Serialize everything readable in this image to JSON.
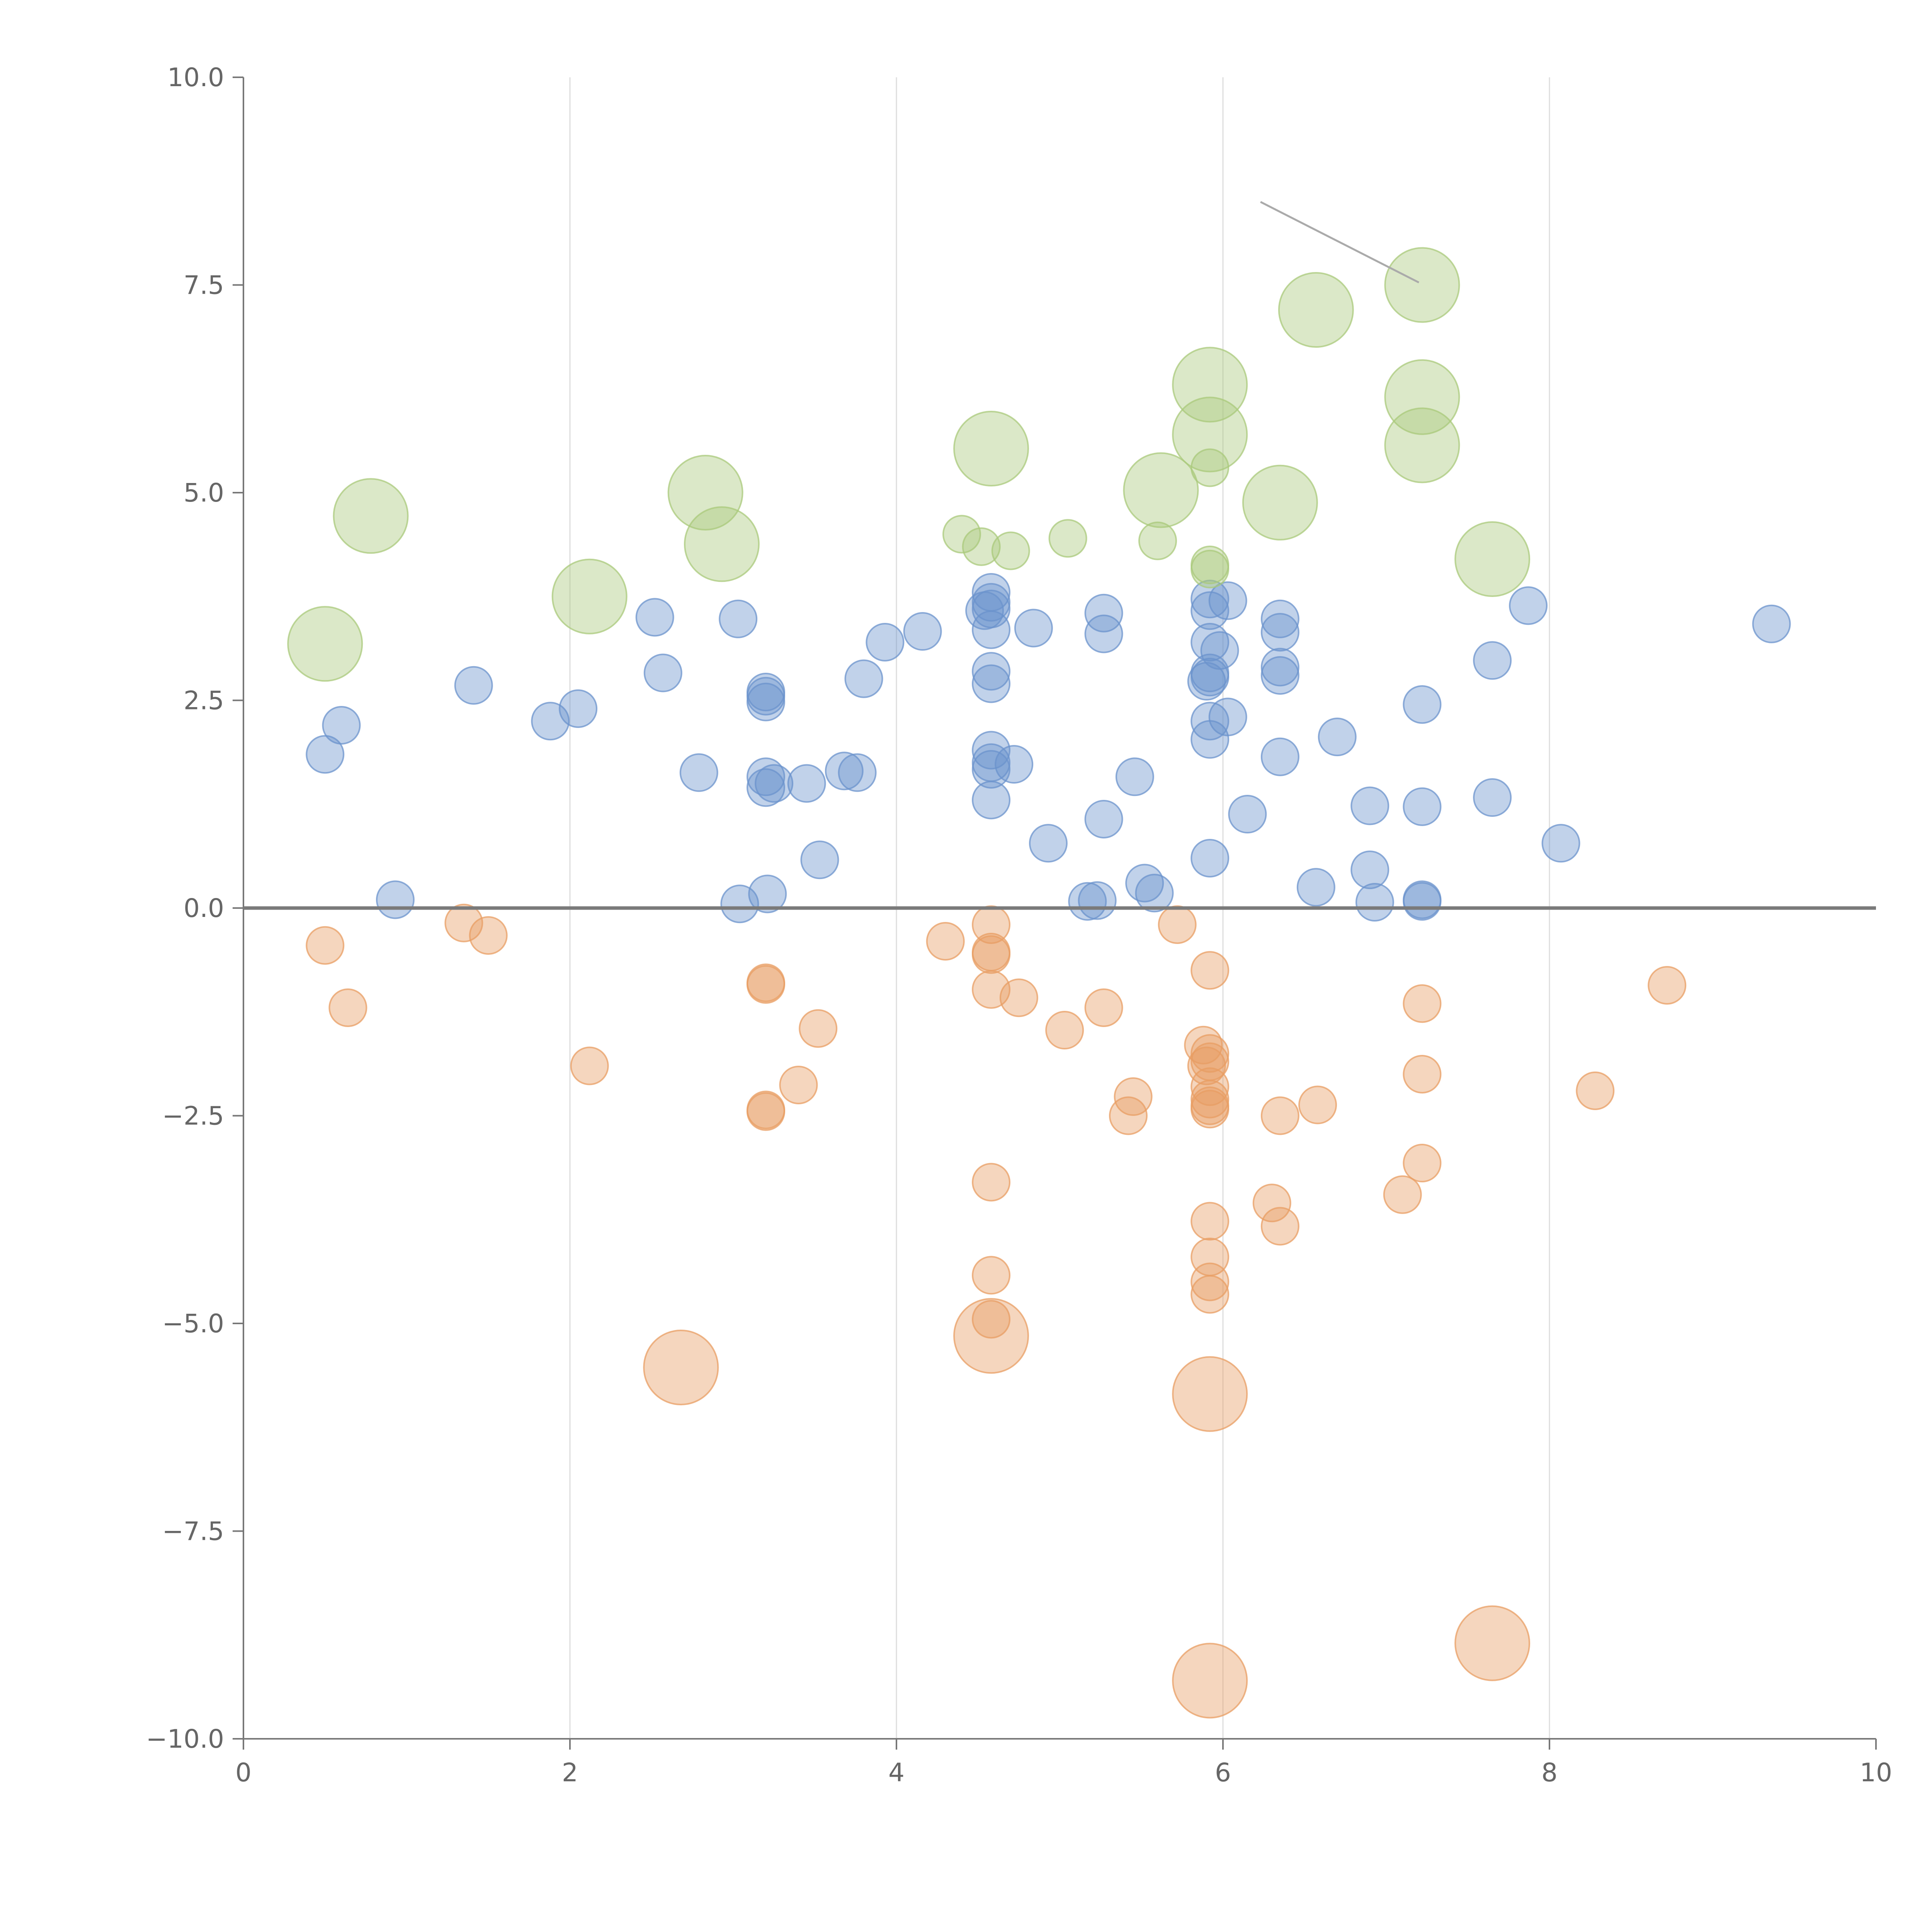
{
  "chart_data": {
    "type": "scatter",
    "title": "",
    "xlabel": "",
    "ylabel": "",
    "xlim": [
      0,
      10
    ],
    "ylim": [
      -10,
      10
    ],
    "grid": "vertical",
    "x_ticks": [
      "0",
      "2",
      "4",
      "6",
      "8",
      "10"
    ],
    "y_ticks": [
      "−10.0",
      "−7.5",
      "−5.0",
      "−2.5",
      "0.0",
      "2.5",
      "5.0",
      "7.5",
      "10.0"
    ],
    "colors": {
      "positive": "#6b93cc",
      "negative": "#e89d63",
      "large": "#a9c97b"
    },
    "series": [
      {
        "name": "positive",
        "color": "#6b93cc",
        "points": [
          [
            0.5,
            1.85
          ],
          [
            0.6,
            2.2
          ],
          [
            0.93,
            0.1
          ],
          [
            1.41,
            2.68
          ],
          [
            1.88,
            2.25
          ],
          [
            2.05,
            2.4
          ],
          [
            2.52,
            3.5
          ],
          [
            2.57,
            2.83
          ],
          [
            2.79,
            1.63
          ],
          [
            3.03,
            3.48
          ],
          [
            3.04,
            0.05
          ],
          [
            3.2,
            2.6
          ],
          [
            3.2,
            2.55
          ],
          [
            3.2,
            2.48
          ],
          [
            3.2,
            1.58
          ],
          [
            3.2,
            1.45
          ],
          [
            3.21,
            0.17
          ],
          [
            3.25,
            1.5
          ],
          [
            3.45,
            1.5
          ],
          [
            3.53,
            0.58
          ],
          [
            3.68,
            1.65
          ],
          [
            3.76,
            1.63
          ],
          [
            3.8,
            2.76
          ],
          [
            3.93,
            3.2
          ],
          [
            4.16,
            3.33
          ],
          [
            4.54,
            3.58
          ],
          [
            4.58,
            3.8
          ],
          [
            4.58,
            3.68
          ],
          [
            4.58,
            3.6
          ],
          [
            4.58,
            3.35
          ],
          [
            4.58,
            2.85
          ],
          [
            4.58,
            2.7
          ],
          [
            4.58,
            1.9
          ],
          [
            4.58,
            1.75
          ],
          [
            4.58,
            1.67
          ],
          [
            4.58,
            1.3
          ],
          [
            4.72,
            1.73
          ],
          [
            4.84,
            3.37
          ],
          [
            4.93,
            0.78
          ],
          [
            5.17,
            0.08
          ],
          [
            5.23,
            0.09
          ],
          [
            5.27,
            3.55
          ],
          [
            5.27,
            3.3
          ],
          [
            5.27,
            1.07
          ],
          [
            5.46,
            1.58
          ],
          [
            5.52,
            0.3
          ],
          [
            5.58,
            0.18
          ],
          [
            5.9,
            2.73
          ],
          [
            5.92,
            3.72
          ],
          [
            5.92,
            3.58
          ],
          [
            5.92,
            3.2
          ],
          [
            5.92,
            2.83
          ],
          [
            5.92,
            2.78
          ],
          [
            5.92,
            2.25
          ],
          [
            5.92,
            2.03
          ],
          [
            5.92,
            0.6
          ],
          [
            5.98,
            3.1
          ],
          [
            6.03,
            3.7
          ],
          [
            6.03,
            2.3
          ],
          [
            6.15,
            1.13
          ],
          [
            6.35,
            3.48
          ],
          [
            6.35,
            3.32
          ],
          [
            6.35,
            2.9
          ],
          [
            6.35,
            2.8
          ],
          [
            6.35,
            1.82
          ],
          [
            6.57,
            0.25
          ],
          [
            6.7,
            2.06
          ],
          [
            6.9,
            1.23
          ],
          [
            6.9,
            0.46
          ],
          [
            6.93,
            0.07
          ],
          [
            7.22,
            2.45
          ],
          [
            7.22,
            1.22
          ],
          [
            7.22,
            0.1
          ],
          [
            7.22,
            0.08
          ],
          [
            7.65,
            2.98
          ],
          [
            7.65,
            1.33
          ],
          [
            7.87,
            3.64
          ],
          [
            8.07,
            0.78
          ],
          [
            9.36,
            3.42
          ]
        ]
      },
      {
        "name": "negative",
        "color": "#e89d63",
        "points": [
          [
            0.5,
            -0.45
          ],
          [
            0.64,
            -1.2
          ],
          [
            1.35,
            -0.18
          ],
          [
            1.5,
            -0.33
          ],
          [
            2.12,
            -1.9
          ],
          [
            3.2,
            -0.92
          ],
          [
            3.2,
            -0.9
          ],
          [
            3.2,
            -2.45
          ],
          [
            3.2,
            -2.43
          ],
          [
            3.4,
            -2.13
          ],
          [
            3.52,
            -1.45
          ],
          [
            4.3,
            -0.4
          ],
          [
            4.58,
            -0.2
          ],
          [
            4.58,
            -0.53
          ],
          [
            4.58,
            -0.56
          ],
          [
            4.58,
            -0.98
          ],
          [
            4.58,
            -3.3
          ],
          [
            4.58,
            -4.42
          ],
          [
            4.58,
            -4.95
          ],
          [
            4.75,
            -1.08
          ],
          [
            5.03,
            -1.47
          ],
          [
            5.27,
            -1.2
          ],
          [
            5.42,
            -2.5
          ],
          [
            5.45,
            -2.27
          ],
          [
            5.72,
            -0.2
          ],
          [
            5.88,
            -1.65
          ],
          [
            5.9,
            -1.9
          ],
          [
            5.92,
            -0.75
          ],
          [
            5.92,
            -1.75
          ],
          [
            5.92,
            -1.85
          ],
          [
            5.92,
            -2.15
          ],
          [
            5.92,
            -2.3
          ],
          [
            5.92,
            -2.38
          ],
          [
            5.92,
            -2.42
          ],
          [
            5.92,
            -3.77
          ],
          [
            5.92,
            -4.2
          ],
          [
            5.92,
            -4.5
          ],
          [
            5.92,
            -4.65
          ],
          [
            6.3,
            -3.55
          ],
          [
            6.35,
            -2.5
          ],
          [
            6.35,
            -3.83
          ],
          [
            6.58,
            -2.37
          ],
          [
            7.1,
            -3.45
          ],
          [
            7.22,
            -1.15
          ],
          [
            7.22,
            -2.0
          ],
          [
            7.22,
            -3.07
          ],
          [
            8.28,
            -2.2
          ],
          [
            8.72,
            -0.93
          ]
        ]
      },
      {
        "name": "large",
        "color": "#a9c97b",
        "points": [
          [
            4.4,
            4.5
          ],
          [
            4.52,
            4.35
          ],
          [
            4.7,
            4.3
          ],
          [
            5.05,
            4.45
          ],
          [
            5.6,
            4.42
          ],
          [
            5.92,
            4.13
          ],
          [
            5.92,
            4.08
          ],
          [
            5.92,
            5.3
          ]
        ],
        "large_points": [
          [
            0.5,
            3.18
          ],
          [
            0.78,
            4.72
          ],
          [
            2.12,
            3.75
          ],
          [
            2.83,
            5.0
          ],
          [
            2.93,
            4.38
          ],
          [
            4.58,
            5.53
          ],
          [
            5.62,
            5.03
          ],
          [
            5.92,
            6.3
          ],
          [
            5.92,
            5.7
          ],
          [
            6.35,
            4.88
          ],
          [
            6.57,
            7.2
          ],
          [
            7.22,
            7.5
          ],
          [
            7.22,
            6.15
          ],
          [
            7.22,
            5.57
          ],
          [
            7.65,
            4.2
          ]
        ]
      },
      {
        "name": "negative-large",
        "color": "#e89d63",
        "points": [],
        "large_points": [
          [
            2.68,
            -5.53
          ],
          [
            4.58,
            -5.15
          ],
          [
            5.92,
            -5.85
          ],
          [
            5.92,
            -9.3
          ],
          [
            7.65,
            -8.85
          ]
        ]
      }
    ],
    "annotation_leader": {
      "from": [
        6.23,
        8.5
      ],
      "to": [
        7.2,
        7.53
      ]
    }
  }
}
